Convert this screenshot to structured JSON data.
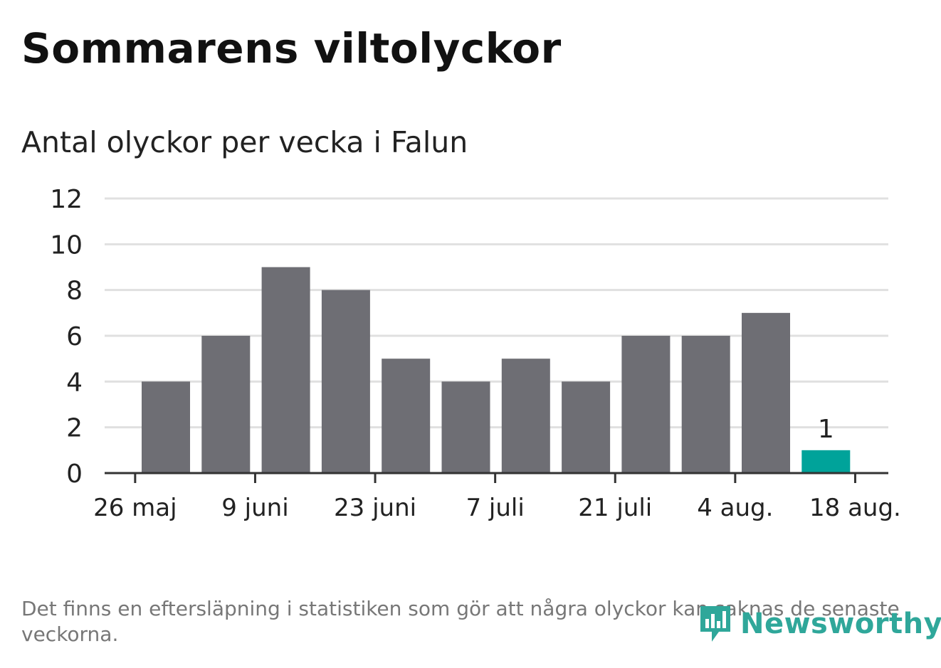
{
  "title": "Sommarens viltolyckor",
  "subtitle": "Antal olyckor per vecka i Falun",
  "footnote": "Det finns en eftersläpning i statistiken som gör att några olyckor kan saknas de senaste veckorna.",
  "brand": "Newsworthy",
  "colors": {
    "bar": "#6e6e74",
    "highlight": "#00a39a",
    "grid": "#e0e0e0",
    "axis": "#333333",
    "brand": "#2fa79a"
  },
  "chart_data": {
    "type": "bar",
    "values": [
      4,
      6,
      9,
      8,
      5,
      4,
      5,
      4,
      6,
      6,
      7,
      1
    ],
    "highlight_index": 11,
    "value_labels": [
      {
        "index": 11,
        "text": "1"
      }
    ],
    "ylim": [
      0,
      12
    ],
    "yticks": [
      0,
      2,
      4,
      6,
      8,
      10,
      12
    ],
    "xtick_labels": [
      "26 maj",
      "9 juni",
      "23 juni",
      "7 juli",
      "21 juli",
      "4 aug.",
      "18 aug."
    ],
    "grid": true,
    "legend": "none"
  }
}
